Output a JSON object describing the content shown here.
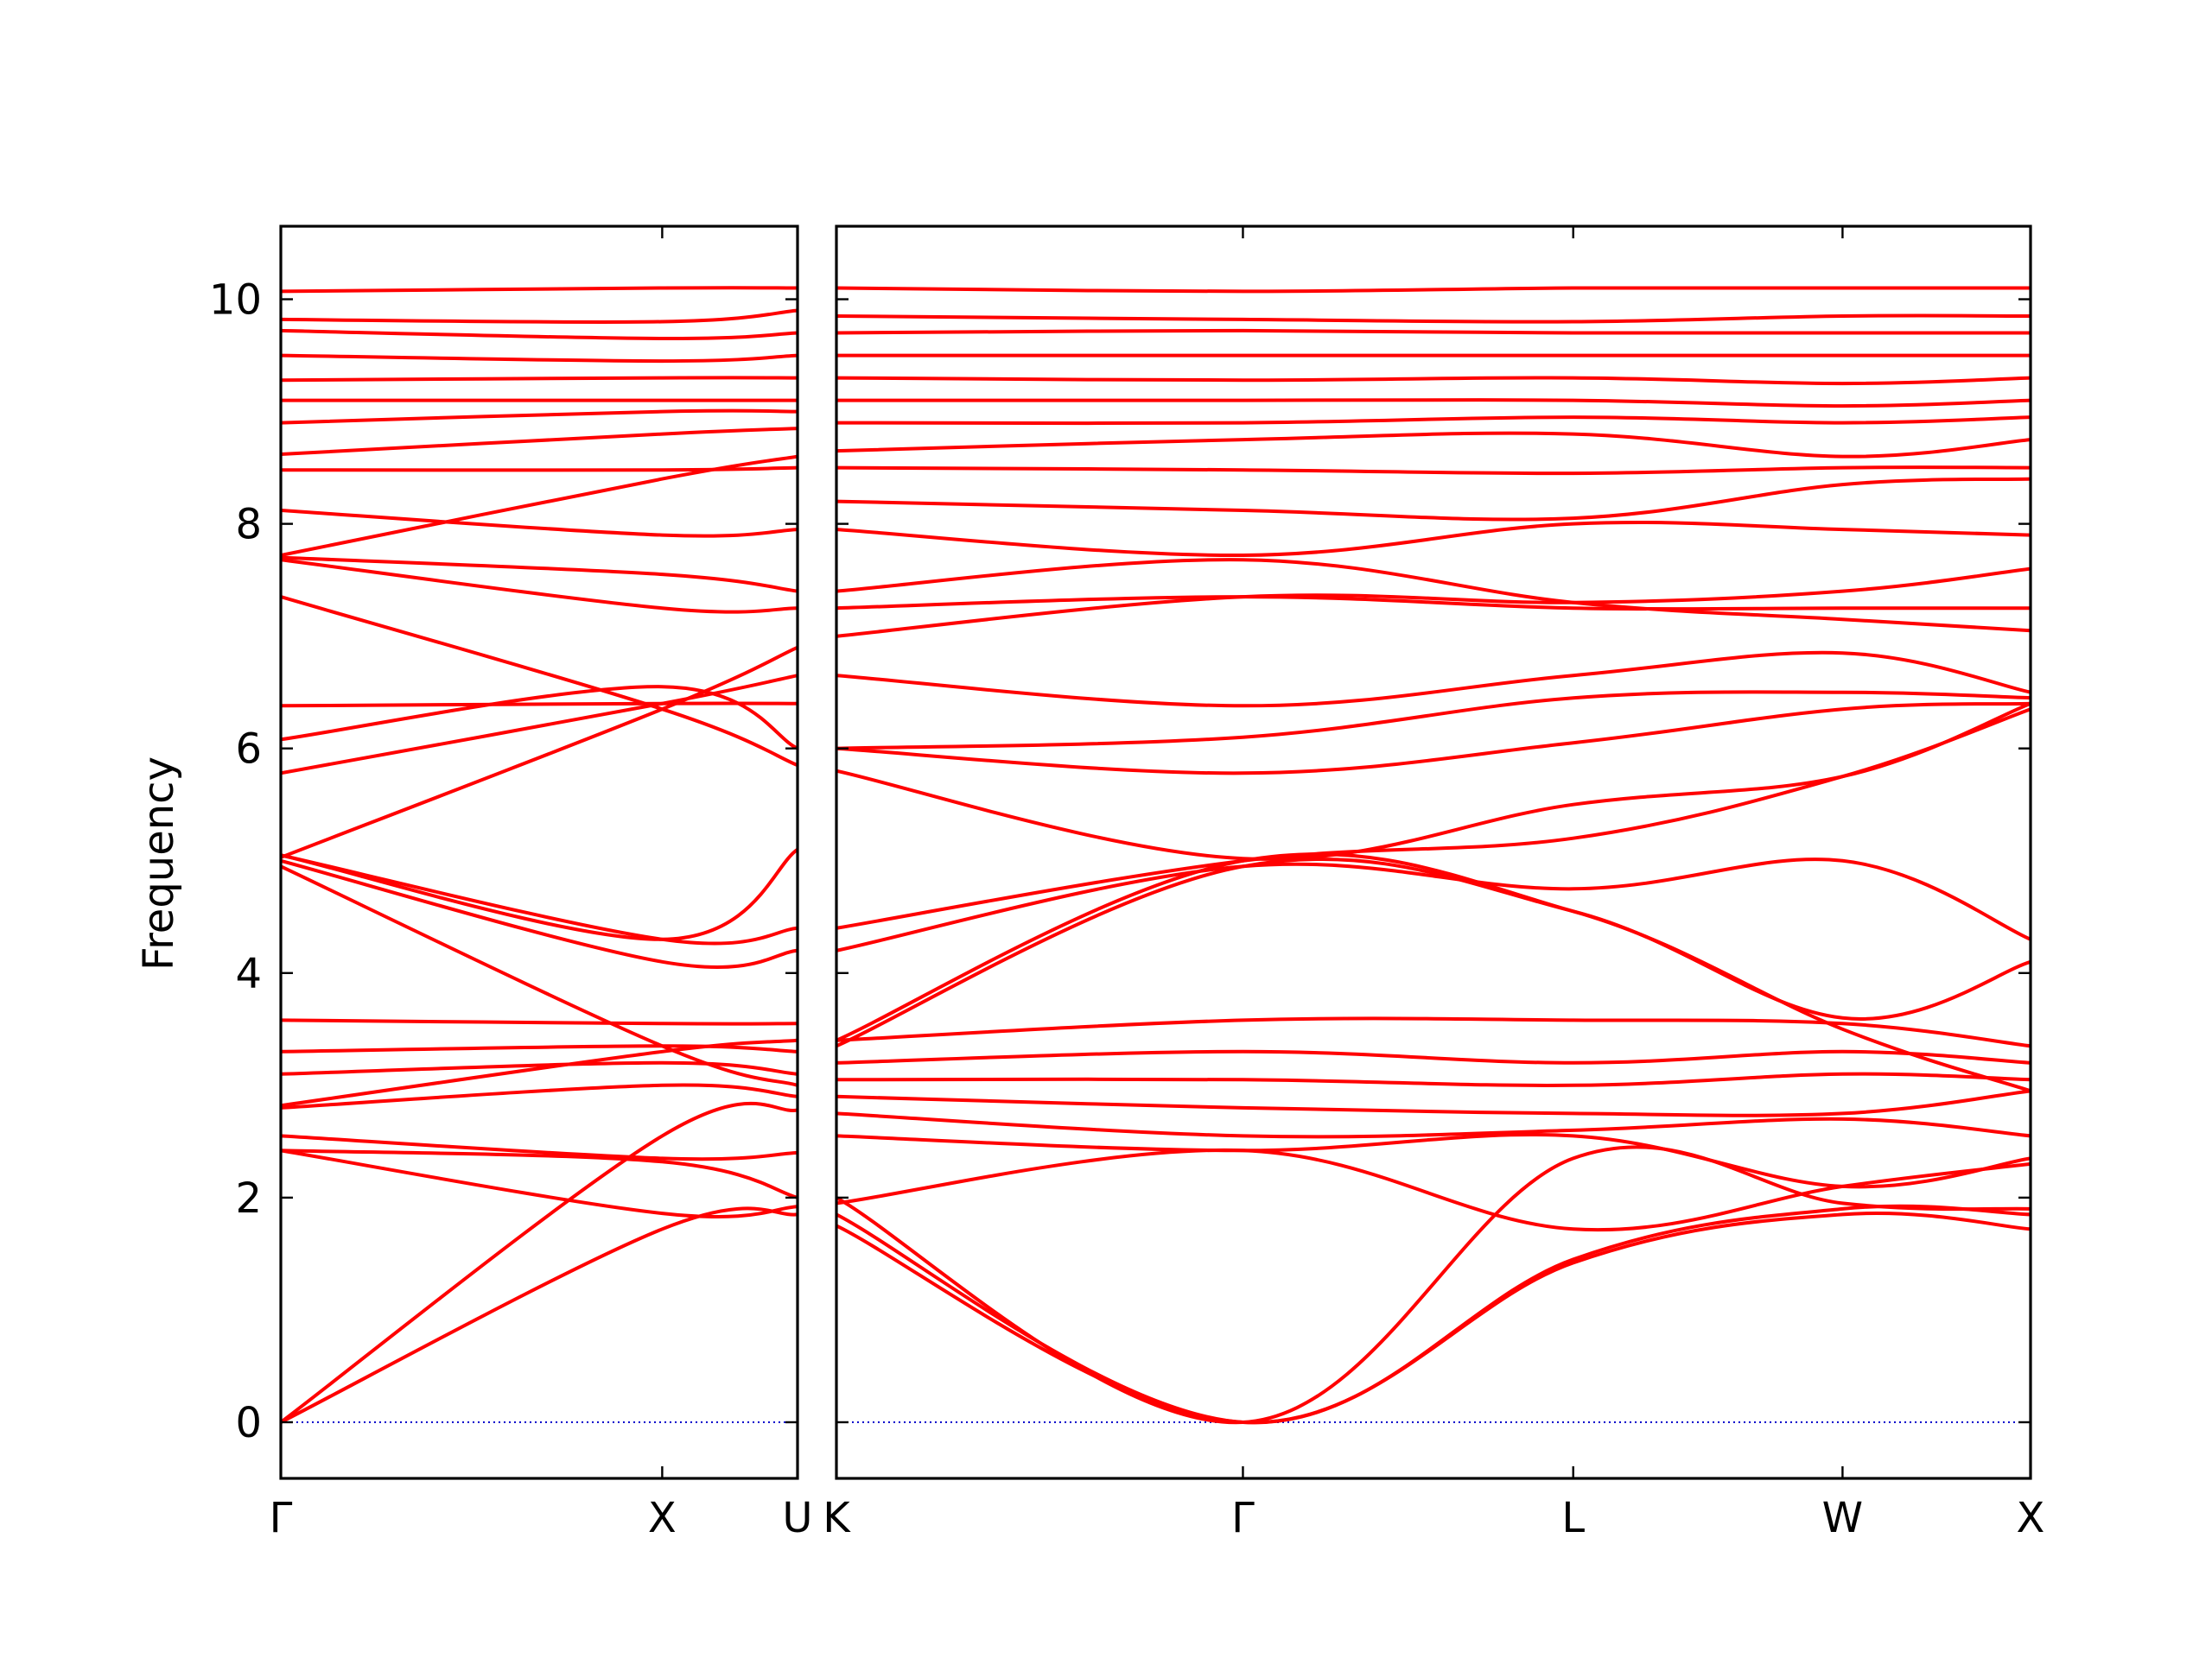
{
  "chart_data": {
    "type": "line",
    "ylabel": "Frequency",
    "xlabel": "",
    "title": "",
    "ylim": [
      -0.5,
      10.65
    ],
    "yticks": [
      0,
      2,
      4,
      6,
      8,
      10
    ],
    "grid": false,
    "colors": {
      "bands": "#ff0000",
      "zero_line": "#0000cc",
      "frame": "#000000"
    },
    "panels": [
      {
        "name": "panel-left",
        "xlim": [
          0,
          2.1
        ],
        "ticks": [
          {
            "pos": 0,
            "label": "Γ"
          },
          {
            "pos": 1.55,
            "label": "X"
          },
          {
            "pos": 2.1,
            "label": "U"
          }
        ],
        "bands": [
          {
            "x": [
              0,
              1.55,
              2.1
            ],
            "y": [
              0,
              1.72,
              1.85
            ]
          },
          {
            "x": [
              0,
              1.55,
              2.1
            ],
            "y": [
              0,
              2.55,
              2.78
            ]
          },
          {
            "x": [
              0,
              1.55,
              2.1
            ],
            "y": [
              2.42,
              1.86,
              1.92
            ]
          },
          {
            "x": [
              0,
              1.55,
              2.1
            ],
            "y": [
              2.42,
              2.32,
              2.0
            ]
          },
          {
            "x": [
              0,
              1.55,
              2.1
            ],
            "y": [
              2.55,
              2.35,
              2.4
            ]
          },
          {
            "x": [
              0,
              1.55,
              2.1
            ],
            "y": [
              2.8,
              3.0,
              2.9
            ]
          },
          {
            "x": [
              0,
              1.55,
              2.1
            ],
            "y": [
              2.82,
              3.3,
              3.4
            ]
          },
          {
            "x": [
              0,
              1.55,
              2.1
            ],
            "y": [
              3.1,
              3.2,
              3.1
            ]
          },
          {
            "x": [
              0,
              1.55,
              2.1
            ],
            "y": [
              3.3,
              3.35,
              3.3
            ]
          },
          {
            "x": [
              0,
              1.55,
              2.1
            ],
            "y": [
              3.58,
              3.55,
              3.55
            ]
          },
          {
            "x": [
              0,
              1.55,
              2.1
            ],
            "y": [
              4.95,
              3.35,
              3.0
            ]
          },
          {
            "x": [
              0,
              1.55,
              2.1
            ],
            "y": [
              5.0,
              4.1,
              4.2
            ]
          },
          {
            "x": [
              0,
              1.55,
              2.1
            ],
            "y": [
              5.05,
              4.3,
              4.4
            ]
          },
          {
            "x": [
              0,
              1.55,
              2.1
            ],
            "y": [
              5.05,
              4.3,
              5.1
            ]
          },
          {
            "x": [
              0,
              1.55,
              2.1
            ],
            "y": [
              5.03,
              6.35,
              6.9
            ]
          },
          {
            "x": [
              0,
              1.55,
              2.1
            ],
            "y": [
              5.78,
              6.4,
              6.65
            ]
          },
          {
            "x": [
              0,
              1.55,
              2.1
            ],
            "y": [
              6.08,
              6.55,
              6.0
            ]
          },
          {
            "x": [
              0,
              1.55,
              2.1
            ],
            "y": [
              6.38,
              6.4,
              6.4
            ]
          },
          {
            "x": [
              0,
              1.55,
              2.1
            ],
            "y": [
              7.35,
              6.35,
              5.85
            ]
          },
          {
            "x": [
              0,
              1.55,
              2.1
            ],
            "y": [
              7.68,
              7.25,
              7.25
            ]
          },
          {
            "x": [
              0,
              1.55,
              2.1
            ],
            "y": [
              7.7,
              7.55,
              7.4
            ]
          },
          {
            "x": [
              0,
              1.55,
              2.1
            ],
            "y": [
              7.72,
              8.4,
              8.6
            ]
          },
          {
            "x": [
              0,
              1.55,
              2.1
            ],
            "y": [
              8.12,
              7.9,
              7.95
            ]
          },
          {
            "x": [
              0,
              1.55,
              2.1
            ],
            "y": [
              8.48,
              8.48,
              8.5
            ]
          },
          {
            "x": [
              0,
              1.55,
              2.1
            ],
            "y": [
              8.62,
              8.8,
              8.85
            ]
          },
          {
            "x": [
              0,
              1.55,
              2.1
            ],
            "y": [
              8.9,
              9.0,
              9.0
            ]
          },
          {
            "x": [
              0,
              1.55,
              2.1
            ],
            "y": [
              9.1,
              9.1,
              9.1
            ]
          },
          {
            "x": [
              0,
              1.55,
              2.1
            ],
            "y": [
              9.28,
              9.3,
              9.3
            ]
          },
          {
            "x": [
              0,
              1.55,
              2.1
            ],
            "y": [
              9.5,
              9.45,
              9.5
            ]
          },
          {
            "x": [
              0,
              1.55,
              2.1
            ],
            "y": [
              9.72,
              9.65,
              9.7
            ]
          },
          {
            "x": [
              0,
              1.55,
              2.1
            ],
            "y": [
              9.82,
              9.8,
              9.9
            ]
          },
          {
            "x": [
              0,
              1.55,
              2.1
            ],
            "y": [
              10.07,
              10.1,
              10.1
            ]
          }
        ]
      },
      {
        "name": "panel-right",
        "xlim": [
          0,
          4.7
        ],
        "ticks": [
          {
            "pos": 0,
            "label": "K"
          },
          {
            "pos": 1.6,
            "label": "Γ"
          },
          {
            "pos": 2.9,
            "label": "L"
          },
          {
            "pos": 3.96,
            "label": "W"
          },
          {
            "pos": 4.7,
            "label": "X"
          }
        ],
        "bands": [
          {
            "x": [
              0,
              1.6,
              2.9,
              3.96,
              4.7
            ],
            "y": [
              1.75,
              0,
              1.42,
              1.85,
              1.72
            ]
          },
          {
            "x": [
              0,
              1.6,
              2.9,
              3.96,
              4.7
            ],
            "y": [
              1.85,
              0,
              1.45,
              1.9,
              1.85
            ]
          },
          {
            "x": [
              0,
              1.6,
              2.9,
              3.96,
              4.7
            ],
            "y": [
              2.0,
              0,
              2.35,
              1.95,
              1.9
            ]
          },
          {
            "x": [
              0,
              1.6,
              2.9,
              3.96,
              4.7
            ],
            "y": [
              1.95,
              2.42,
              1.72,
              2.1,
              2.3
            ]
          },
          {
            "x": [
              0,
              1.6,
              2.9,
              3.96,
              4.7
            ],
            "y": [
              2.55,
              2.42,
              2.55,
              2.1,
              2.35
            ]
          },
          {
            "x": [
              0,
              1.6,
              2.9,
              3.96,
              4.7
            ],
            "y": [
              2.75,
              2.55,
              2.6,
              2.7,
              2.55
            ]
          },
          {
            "x": [
              0,
              1.6,
              2.9,
              3.96,
              4.7
            ],
            "y": [
              2.9,
              2.8,
              2.75,
              2.75,
              2.95
            ]
          },
          {
            "x": [
              0,
              1.6,
              2.9,
              3.96,
              4.7
            ],
            "y": [
              3.05,
              3.05,
              3.0,
              3.1,
              3.05
            ]
          },
          {
            "x": [
              0,
              1.6,
              2.9,
              3.96,
              4.7
            ],
            "y": [
              3.2,
              3.3,
              3.2,
              3.3,
              3.2
            ]
          },
          {
            "x": [
              0,
              1.6,
              2.9,
              3.96,
              4.7
            ],
            "y": [
              3.4,
              3.58,
              3.58,
              3.55,
              3.35
            ]
          },
          {
            "x": [
              0,
              1.6,
              2.9,
              3.96,
              4.7
            ],
            "y": [
              3.35,
              4.95,
              4.55,
              3.6,
              4.1
            ]
          },
          {
            "x": [
              0,
              1.6,
              2.9,
              3.96,
              4.7
            ],
            "y": [
              3.4,
              5.0,
              4.55,
              3.5,
              2.95
            ]
          },
          {
            "x": [
              0,
              1.6,
              2.9,
              3.96,
              4.7
            ],
            "y": [
              4.2,
              4.95,
              4.75,
              5.0,
              4.3
            ]
          },
          {
            "x": [
              0,
              1.6,
              2.9,
              3.96,
              4.7
            ],
            "y": [
              4.4,
              5.0,
              5.2,
              5.75,
              6.35
            ]
          },
          {
            "x": [
              0,
              1.6,
              2.9,
              3.96,
              4.7
            ],
            "y": [
              5.8,
              5.02,
              5.5,
              5.75,
              6.4
            ]
          },
          {
            "x": [
              0,
              1.6,
              2.9,
              3.96,
              4.7
            ],
            "y": [
              6.0,
              5.78,
              6.05,
              6.35,
              6.4
            ]
          },
          {
            "x": [
              0,
              1.6,
              2.9,
              3.96,
              4.7
            ],
            "y": [
              6.0,
              6.1,
              6.45,
              6.5,
              6.45
            ]
          },
          {
            "x": [
              0,
              1.6,
              2.9,
              3.96,
              4.7
            ],
            "y": [
              6.65,
              6.38,
              6.65,
              6.85,
              6.5
            ]
          },
          {
            "x": [
              0,
              1.6,
              2.9,
              3.96,
              4.7
            ],
            "y": [
              7.0,
              7.35,
              7.3,
              7.4,
              7.6
            ]
          },
          {
            "x": [
              0,
              1.6,
              2.9,
              3.96,
              4.7
            ],
            "y": [
              7.25,
              7.35,
              7.25,
              7.25,
              7.25
            ]
          },
          {
            "x": [
              0,
              1.6,
              2.9,
              3.96,
              4.7
            ],
            "y": [
              7.4,
              7.68,
              7.3,
              7.15,
              7.05
            ]
          },
          {
            "x": [
              0,
              1.6,
              2.9,
              3.96,
              4.7
            ],
            "y": [
              7.95,
              7.72,
              8.0,
              7.95,
              7.9
            ]
          },
          {
            "x": [
              0,
              1.6,
              2.9,
              3.96,
              4.7
            ],
            "y": [
              8.2,
              8.12,
              8.05,
              8.35,
              8.4
            ]
          },
          {
            "x": [
              0,
              1.6,
              2.9,
              3.96,
              4.7
            ],
            "y": [
              8.5,
              8.48,
              8.45,
              8.5,
              8.5
            ]
          },
          {
            "x": [
              0,
              1.6,
              2.9,
              3.96,
              4.7
            ],
            "y": [
              8.65,
              8.75,
              8.8,
              8.6,
              8.75
            ]
          },
          {
            "x": [
              0,
              1.6,
              2.9,
              3.96,
              4.7
            ],
            "y": [
              8.9,
              8.9,
              8.95,
              8.9,
              8.95
            ]
          },
          {
            "x": [
              0,
              1.6,
              2.9,
              3.96,
              4.7
            ],
            "y": [
              9.1,
              9.1,
              9.1,
              9.05,
              9.1
            ]
          },
          {
            "x": [
              0,
              1.6,
              2.9,
              3.96,
              4.7
            ],
            "y": [
              9.3,
              9.28,
              9.3,
              9.25,
              9.3
            ]
          },
          {
            "x": [
              0,
              1.6,
              2.9,
              3.96,
              4.7
            ],
            "y": [
              9.5,
              9.5,
              9.5,
              9.5,
              9.5
            ]
          },
          {
            "x": [
              0,
              1.6,
              2.9,
              3.96,
              4.7
            ],
            "y": [
              9.7,
              9.72,
              9.7,
              9.7,
              9.7
            ]
          },
          {
            "x": [
              0,
              1.6,
              2.9,
              3.96,
              4.7
            ],
            "y": [
              9.85,
              9.82,
              9.8,
              9.85,
              9.85
            ]
          },
          {
            "x": [
              0,
              1.6,
              2.9,
              3.96,
              4.7
            ],
            "y": [
              10.1,
              10.07,
              10.1,
              10.1,
              10.1
            ]
          }
        ]
      }
    ]
  }
}
